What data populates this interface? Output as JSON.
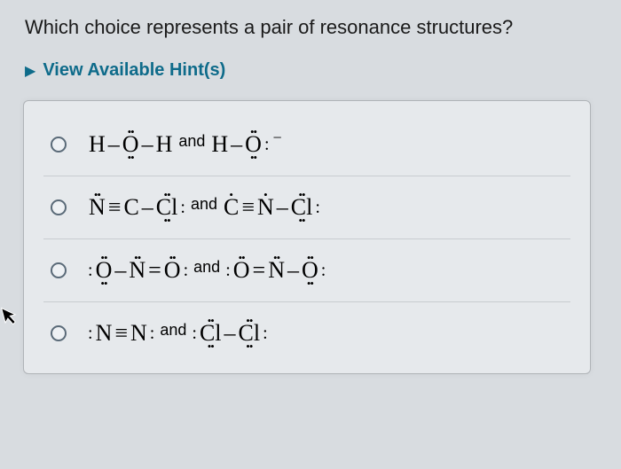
{
  "question": "Which choice represents a pair of resonance structures?",
  "hints": {
    "arrow": "▶",
    "label": "View Available Hint(s)"
  },
  "and_label": "and",
  "colors": {
    "page_bg": "#d8dce0",
    "hint_color": "#0e6b8a",
    "container_bg": "#e6e9ec",
    "container_border": "#b0b4b8",
    "divider": "#c8ccd0",
    "radio_border": "#5a6a78",
    "text": "#1a1a1a"
  },
  "options": [
    {
      "left": [
        {
          "t": "atom",
          "sym": "H"
        },
        {
          "t": "bond",
          "sym": "–"
        },
        {
          "t": "atom",
          "sym": "O",
          "top": "••",
          "bot": "••"
        },
        {
          "t": "bond",
          "sym": "–"
        },
        {
          "t": "atom",
          "sym": "H"
        }
      ],
      "right": [
        {
          "t": "atom",
          "sym": "H"
        },
        {
          "t": "bond",
          "sym": "–"
        },
        {
          "t": "atom",
          "sym": "O",
          "top": "••",
          "bot": "••"
        },
        {
          "t": "lone-right",
          "sym": ":"
        },
        {
          "t": "charge",
          "sym": "−"
        }
      ]
    },
    {
      "left": [
        {
          "t": "atom",
          "sym": "N",
          "top": "••"
        },
        {
          "t": "bond",
          "sym": "≡"
        },
        {
          "t": "atom",
          "sym": "C"
        },
        {
          "t": "bond",
          "sym": "–"
        },
        {
          "t": "atom",
          "sym": "Cl",
          "top": "••",
          "bot": "••"
        },
        {
          "t": "lone-right",
          "sym": ":"
        }
      ],
      "right": [
        {
          "t": "atom",
          "sym": "C",
          "top": "•"
        },
        {
          "t": "bond",
          "sym": "≡"
        },
        {
          "t": "atom",
          "sym": "N",
          "top": "•"
        },
        {
          "t": "bond",
          "sym": "–"
        },
        {
          "t": "atom",
          "sym": "Cl",
          "top": "••",
          "bot": "••"
        },
        {
          "t": "lone-right",
          "sym": ":"
        }
      ]
    },
    {
      "left": [
        {
          "t": "lone-left",
          "sym": ":"
        },
        {
          "t": "atom",
          "sym": "O",
          "top": "••",
          "bot": "••"
        },
        {
          "t": "bond",
          "sym": "–"
        },
        {
          "t": "atom",
          "sym": "N",
          "top": "••"
        },
        {
          "t": "bond",
          "sym": "="
        },
        {
          "t": "atom",
          "sym": "O",
          "top": "••"
        },
        {
          "t": "lone-right",
          "sym": ":"
        }
      ],
      "right": [
        {
          "t": "lone-left",
          "sym": ":"
        },
        {
          "t": "atom",
          "sym": "O",
          "top": "••"
        },
        {
          "t": "bond",
          "sym": "="
        },
        {
          "t": "atom",
          "sym": "N",
          "top": "••"
        },
        {
          "t": "bond",
          "sym": "–"
        },
        {
          "t": "atom",
          "sym": "O",
          "top": "••",
          "bot": "••"
        },
        {
          "t": "lone-right",
          "sym": ":"
        }
      ]
    },
    {
      "left": [
        {
          "t": "lone-left",
          "sym": ":"
        },
        {
          "t": "atom",
          "sym": "N"
        },
        {
          "t": "bond",
          "sym": "≡"
        },
        {
          "t": "atom",
          "sym": "N"
        },
        {
          "t": "lone-right",
          "sym": ":"
        }
      ],
      "right": [
        {
          "t": "lone-left",
          "sym": ":"
        },
        {
          "t": "atom",
          "sym": "Cl",
          "top": "••",
          "bot": "••"
        },
        {
          "t": "bond",
          "sym": "–"
        },
        {
          "t": "atom",
          "sym": "Cl",
          "top": "••",
          "bot": "••"
        },
        {
          "t": "lone-right",
          "sym": ":"
        }
      ]
    }
  ]
}
